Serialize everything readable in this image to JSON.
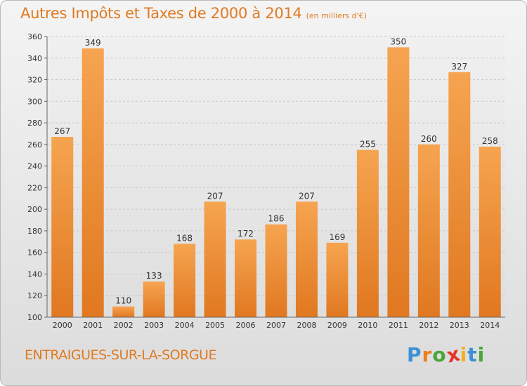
{
  "title": "Autres Impôts et Taxes de 2000 à 2014",
  "unit_note": "(en milliers d'€)",
  "commune": "ENTRAIGUES-SUR-LA-SORGUE",
  "logo": {
    "letters": [
      "P",
      "r",
      "o",
      "x",
      "i",
      "t",
      "i"
    ],
    "colors": [
      "#3d8fd6",
      "#f07d1a",
      "#4aa53a",
      "#e8342a",
      "#f2b01e",
      "#3d8fd6",
      "#4aa53a"
    ]
  },
  "colors": {
    "bar_light": "#f6a450",
    "bar_dark": "#e07820",
    "grid": "#c8c8c8",
    "text": "#333333"
  },
  "chart_data": {
    "type": "bar",
    "categories": [
      "2000",
      "2001",
      "2002",
      "2003",
      "2004",
      "2005",
      "2006",
      "2007",
      "2008",
      "2009",
      "2010",
      "2011",
      "2012",
      "2013",
      "2014"
    ],
    "values": [
      267,
      349,
      110,
      133,
      168,
      207,
      172,
      186,
      207,
      169,
      255,
      350,
      260,
      327,
      258
    ],
    "ylim": [
      100,
      360
    ],
    "yticks": [
      100,
      120,
      140,
      160,
      180,
      200,
      220,
      240,
      260,
      280,
      300,
      320,
      340,
      360
    ],
    "grid": true,
    "xlabel": "",
    "ylabel": ""
  }
}
